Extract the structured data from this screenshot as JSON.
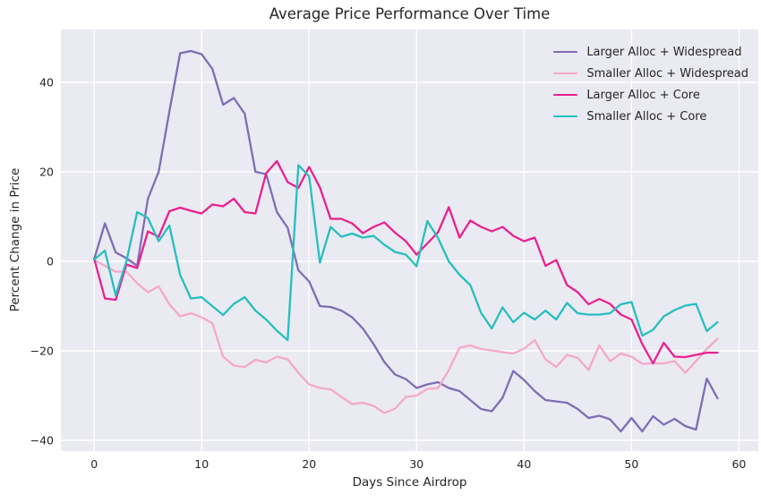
{
  "figure": {
    "title": "Average Price Performance Over Time",
    "xlabel": "Days Since Airdrop",
    "ylabel": "Percent Change in Price"
  },
  "colors": {
    "figure_bg": "#ffffff",
    "axes_bg": "#eaeaf2",
    "grid": "#ffffff",
    "text": "#262626"
  },
  "legend": {
    "entries": [
      "Larger Alloc + Widespread",
      "Smaller Alloc + Widespread",
      "Larger Alloc + Core",
      "Smaller Alloc + Core"
    ]
  },
  "chart_data": {
    "type": "line",
    "title": "Average Price Performance Over Time",
    "xlabel": "Days Since Airdrop",
    "ylabel": "Percent Change in Price",
    "grid": true,
    "legend_position": "upper right",
    "xlim": [
      -3.1,
      61.8
    ],
    "ylim": [
      -42.4,
      51.8
    ],
    "xticks": [
      0,
      10,
      20,
      30,
      40,
      50,
      60
    ],
    "yticks": [
      -40,
      -20,
      0,
      20,
      40
    ],
    "x": [
      0,
      1,
      2,
      3,
      4,
      5,
      6,
      7,
      8,
      9,
      10,
      11,
      12,
      13,
      14,
      15,
      16,
      17,
      18,
      19,
      20,
      21,
      22,
      23,
      24,
      25,
      26,
      27,
      28,
      29,
      30,
      31,
      32,
      33,
      34,
      35,
      36,
      37,
      38,
      39,
      40,
      41,
      42,
      43,
      44,
      45,
      46,
      47,
      48,
      49,
      50,
      51,
      52,
      53,
      54,
      55,
      56,
      57,
      58
    ],
    "series": [
      {
        "name": "Larger Alloc + Widespread",
        "color": "#7f6db5",
        "values": [
          0.5,
          8.5,
          2,
          0.7,
          -1,
          14,
          20,
          33.5,
          46.5,
          47,
          46.3,
          43,
          35,
          36.5,
          33,
          20,
          19.5,
          11,
          7.5,
          -2,
          -4.5,
          -10,
          -10.2,
          -11,
          -12.5,
          -15,
          -18.5,
          -22.5,
          -25.3,
          -26.3,
          -28.3,
          -27.5,
          -27,
          -28.3,
          -29,
          -31,
          -33,
          -33.5,
          -30.5,
          -24.5,
          -26.5,
          -29,
          -31,
          -31.3,
          -31.6,
          -33,
          -35,
          -34.5,
          -35.3,
          -38,
          -35,
          -38,
          -34.6,
          -36.5,
          -35.2,
          -36.8,
          -37.6,
          -26.2,
          -30.6
        ]
      },
      {
        "name": "Smaller Alloc + Widespread",
        "color": "#f5a9c9",
        "values": [
          0.3,
          -1,
          -2.3,
          -2.3,
          -4.9,
          -6.9,
          -5.6,
          -9.6,
          -12.3,
          -11.6,
          -12.5,
          -13.8,
          -21.3,
          -23.3,
          -23.6,
          -22,
          -22.6,
          -21.3,
          -21.9,
          -24.9,
          -27.5,
          -28.3,
          -28.6,
          -30.3,
          -31.9,
          -31.6,
          -32.3,
          -33.9,
          -32.9,
          -30.3,
          -30,
          -28.5,
          -28.3,
          -24.3,
          -19.3,
          -18.8,
          -19.6,
          -19.9,
          -20.3,
          -20.6,
          -19.5,
          -17.6,
          -21.9,
          -23.6,
          -20.9,
          -21.6,
          -24.3,
          -18.8,
          -22.3,
          -20.6,
          -21.3,
          -22.9,
          -22.8,
          -22.8,
          -22.3,
          -24.9,
          -22.3,
          -19.6,
          -17.3
        ]
      },
      {
        "name": "Larger Alloc + Core",
        "color": "#e9218f",
        "values": [
          0.6,
          -8.3,
          -8.6,
          -0.7,
          -1.5,
          6.7,
          5.5,
          11.2,
          12,
          11.3,
          10.7,
          12.7,
          12.3,
          14,
          11,
          10.7,
          19.7,
          22.4,
          17.7,
          16.4,
          21.1,
          16.5,
          9.5,
          9.5,
          8.5,
          6.3,
          7.7,
          8.7,
          6.4,
          4.5,
          1.5,
          4,
          6.5,
          12.1,
          5.3,
          9.1,
          7.7,
          6.7,
          7.7,
          5.7,
          4.5,
          5.3,
          -1,
          0.3,
          -5.3,
          -6.9,
          -9.6,
          -8.4,
          -9.5,
          -11.9,
          -13,
          -18.5,
          -22.8,
          -18.2,
          -21.3,
          -21.4,
          -20.9,
          -20.4,
          -20.4
        ]
      },
      {
        "name": "Smaller Alloc + Core",
        "color": "#26bfbe",
        "values": [
          0.4,
          2.4,
          -7.6,
          0,
          11,
          9.7,
          4.5,
          8,
          -3,
          -8.3,
          -8,
          -10,
          -12,
          -9.5,
          -8,
          -11,
          -13,
          -15.5,
          -17.6,
          21.5,
          19,
          -0.3,
          7.7,
          5.5,
          6.2,
          5.3,
          5.7,
          3.7,
          2.1,
          1.5,
          -1.1,
          9,
          5.2,
          0,
          -3,
          -5.3,
          -11.5,
          -15,
          -10.3,
          -13.6,
          -11.5,
          -13,
          -11,
          -13,
          -9.3,
          -11.6,
          -11.9,
          -11.9,
          -11.6,
          -9.6,
          -9.1,
          -16.6,
          -15.3,
          -12.3,
          -10.9,
          -9.9,
          -9.5,
          -15.6,
          -13.6
        ]
      }
    ]
  }
}
